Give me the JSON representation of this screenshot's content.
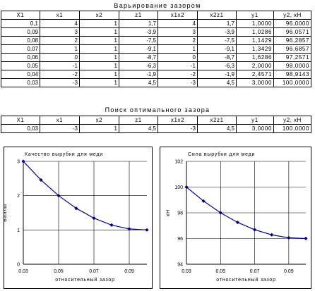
{
  "section1": {
    "title": "Варьирование зазором",
    "headers": [
      "X1",
      "x1",
      "x2",
      "z1",
      "x1x2",
      "x2z1",
      "y1",
      "y2, кН"
    ],
    "rows": [
      [
        "0,1",
        "4",
        "1",
        "1,7",
        "4",
        "1,7",
        "1,0000",
        "96,0000"
      ],
      [
        "0,09",
        "3",
        "1",
        "-3,9",
        "3",
        "-3,9",
        "1,0286",
        "96,0571"
      ],
      [
        "0,08",
        "2",
        "1",
        "-7,5",
        "2",
        "-7,5",
        "1,1429",
        "96,2857"
      ],
      [
        "0,07",
        "1",
        "1",
        "-9,1",
        "1",
        "-9,1",
        "1,3429",
        "96,6857"
      ],
      [
        "0,06",
        "0",
        "1",
        "-8,7",
        "0",
        "-8,7",
        "1,6286",
        "97,2571"
      ],
      [
        "0,05",
        "-1",
        "1",
        "-6,3",
        "-1",
        "-6,3",
        "2,0000",
        "98,0000"
      ],
      [
        "0,04",
        "-2",
        "1",
        "-1,9",
        "-2",
        "-1,9",
        "2,4571",
        "98,9143"
      ],
      [
        "0,03",
        "-3",
        "1",
        "4,5",
        "-3",
        "4,5",
        "3,0000",
        "100,0000"
      ]
    ]
  },
  "section2": {
    "title": "Поиск оптимального зазора",
    "headers": [
      "X1",
      "x1",
      "x2",
      "z1",
      "x1x2",
      "x2z1",
      "y1",
      "y2, кН"
    ],
    "rows": [
      [
        "0,03",
        "-3",
        "1",
        "4,5",
        "-3",
        "4,5",
        "3,0000",
        "100,0000"
      ]
    ]
  },
  "charts": {
    "quality": {
      "title": "Качество вырубки для меди",
      "ylabel": "Баллы",
      "xlabel": "относительный зазор",
      "xticks": [
        "0.03",
        "0.05",
        "0.07",
        "0.09"
      ],
      "yticks": [
        "0",
        "1",
        "2",
        "3"
      ]
    },
    "force": {
      "title": "Сила вырубки для меди",
      "ylabel": "кН",
      "xlabel": "относительный зазор",
      "xticks": [
        "0.03",
        "0.05",
        "0.07",
        "0.09"
      ],
      "yticks": [
        "94",
        "96",
        "98",
        "100",
        "102"
      ]
    }
  },
  "chart_data": [
    {
      "type": "line",
      "title": "Качество вырубки для меди",
      "xlabel": "относительный зазор",
      "ylabel": "Баллы",
      "x": [
        0.03,
        0.04,
        0.05,
        0.06,
        0.07,
        0.08,
        0.09,
        0.1
      ],
      "series": [
        {
          "values": [
            3.0,
            2.4571,
            2.0,
            1.6286,
            1.3429,
            1.1429,
            1.0286,
            1.0
          ]
        }
      ],
      "xlim": [
        0.03,
        0.1
      ],
      "ylim": [
        0,
        3
      ],
      "grid": true,
      "color": "#00008B"
    },
    {
      "type": "line",
      "title": "Сила вырубки для меди",
      "xlabel": "относительный зазор",
      "ylabel": "кН",
      "x": [
        0.03,
        0.04,
        0.05,
        0.06,
        0.07,
        0.08,
        0.09,
        0.1
      ],
      "series": [
        {
          "values": [
            100.0,
            98.9143,
            98.0,
            97.2571,
            96.6857,
            96.2857,
            96.0571,
            96.0
          ]
        }
      ],
      "xlim": [
        0.03,
        0.1
      ],
      "ylim": [
        94,
        102
      ],
      "grid": true,
      "color": "#00008B"
    }
  ]
}
